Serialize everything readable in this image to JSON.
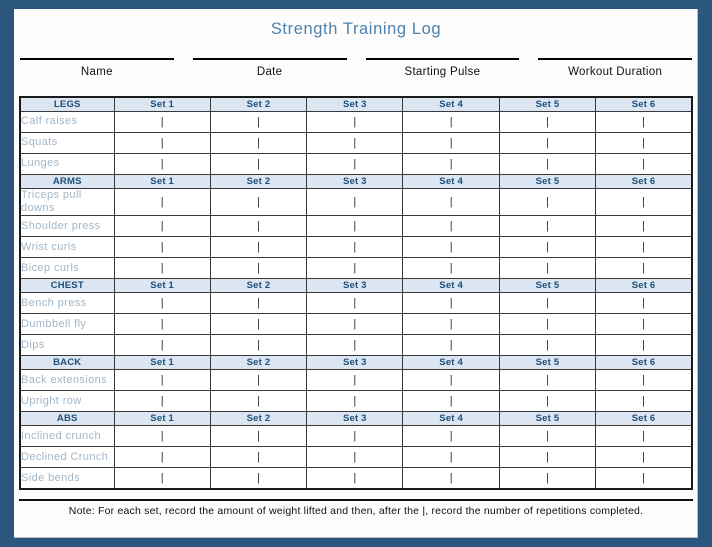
{
  "title": "Strength Training Log",
  "header_fields": [
    {
      "id": "name",
      "label": "Name"
    },
    {
      "id": "date",
      "label": "Date"
    },
    {
      "id": "starting-pulse",
      "label": "Starting Pulse"
    },
    {
      "id": "workout-duration",
      "label": "Workout Duration"
    }
  ],
  "set_labels": [
    "Set 1",
    "Set 2",
    "Set 3",
    "Set 4",
    "Set 5",
    "Set 6"
  ],
  "cell_marker": "|",
  "sections": [
    {
      "name": "LEGS",
      "exercises": [
        "Calf raises",
        "Squats",
        "Lunges"
      ]
    },
    {
      "name": "ARMS",
      "exercises": [
        "Triceps pull downs",
        "Shoulder press",
        "Wrist curls",
        "Bicep curls"
      ]
    },
    {
      "name": "CHEST",
      "exercises": [
        "Bench press",
        "Dumbbell fly",
        "Dips"
      ]
    },
    {
      "name": "BACK",
      "exercises": [
        "Back extensions",
        "Upright row"
      ]
    },
    {
      "name": "ABS",
      "exercises": [
        "Inclined crunch",
        "Declined Crunch",
        "Side bends"
      ]
    }
  ],
  "note": "Note:  For each set, record the amount of weight lifted and then, after the |, record the number of repetitions completed.",
  "colors": {
    "frame": "#2b567d",
    "title_text": "#4e80ab",
    "section_header_bg": "#dbe6f2",
    "section_header_text": "#1e4e79",
    "exercise_text": "#a2b6c7"
  }
}
